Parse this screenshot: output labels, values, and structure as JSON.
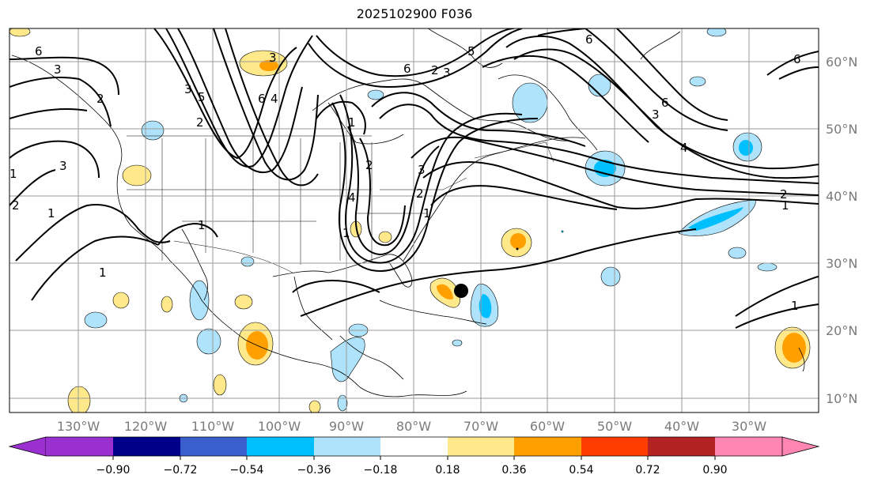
{
  "title": "2025102900 F036",
  "lon_labels": [
    "130°W",
    "120°W",
    "110°W",
    "100°W",
    "90°W",
    "80°W",
    "70°W",
    "60°W",
    "50°W",
    "40°W",
    "30°W"
  ],
  "lat_labels": [
    "60°N",
    "50°N",
    "40°N",
    "30°N",
    "20°N",
    "10°N"
  ],
  "colorbar": {
    "ticks": [
      "−0.90",
      "−0.72",
      "−0.54",
      "−0.36",
      "−0.18",
      "0.18",
      "0.36",
      "0.54",
      "0.72",
      "0.90"
    ],
    "colors": [
      "#9b30d0",
      "#00008b",
      "#3a5fcd",
      "#00bfff",
      "#aee3fb",
      "#ffffff",
      "#ffe98a",
      "#ff9f00",
      "#ff3c00",
      "#b22222",
      "#ff85b2"
    ]
  },
  "contour_labels": [
    "6",
    "3",
    "2",
    "1",
    "1",
    "3",
    "2",
    "1",
    "2",
    "1",
    "3",
    "6",
    "5",
    "4",
    "3",
    "1",
    "2",
    "6",
    "3",
    "2",
    "5",
    "6",
    "4",
    "3",
    "2",
    "1",
    "1",
    "6",
    "4",
    "2",
    "1",
    "1",
    "6",
    "3"
  ],
  "marker": "storm-position-dot"
}
